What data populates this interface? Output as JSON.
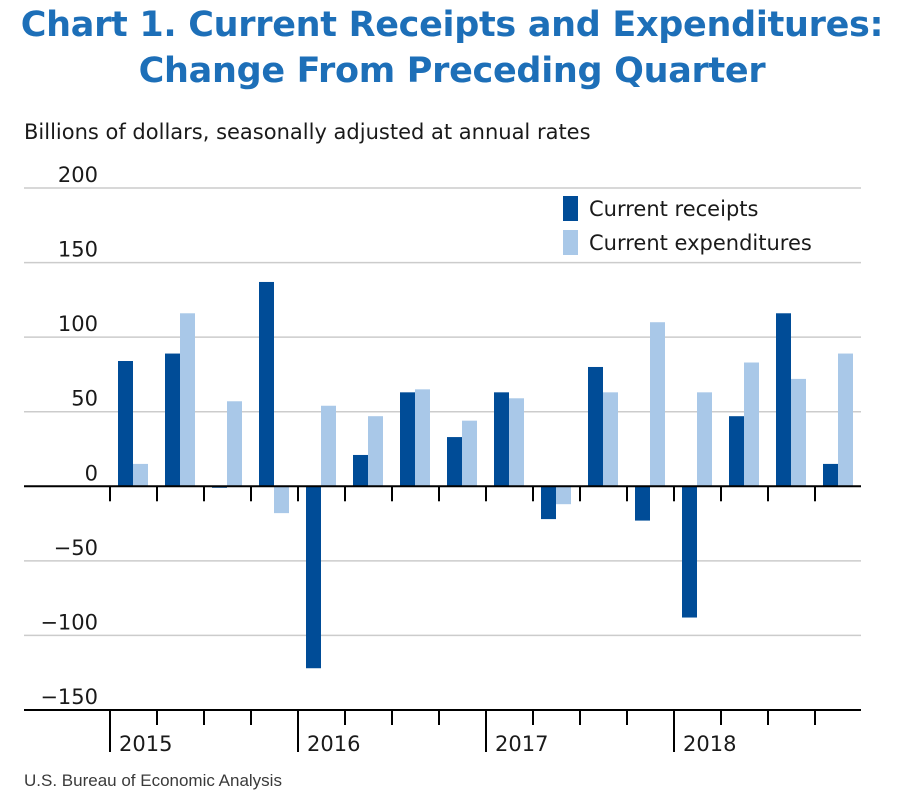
{
  "title_line1": "Chart 1. Current Receipts and Expenditures:",
  "title_line2": "Change From Preceding Quarter",
  "unit_label": "Billions of dollars, seasonally adjusted at annual rates",
  "source": "U.S. Bureau of Economic Analysis",
  "colors": {
    "title": "#1d6fb8",
    "receipts": "#004c97",
    "expenditures": "#a9c8e8",
    "grid": "#cccccc",
    "axis": "#000000"
  },
  "chart_data": {
    "type": "bar",
    "ylim": [
      -150,
      200
    ],
    "yticks": [
      200,
      150,
      100,
      50,
      0,
      -50,
      -100,
      -150
    ],
    "ytick_labels": [
      "200",
      "150",
      "100",
      "50",
      "0",
      "−50",
      "−100",
      "−150"
    ],
    "grid": true,
    "legend_position": "top-right",
    "year_labels": [
      "2015",
      "2016",
      "2017",
      "2018"
    ],
    "quarters_per_year": 4,
    "series": [
      {
        "name": "Current receipts",
        "values": [
          84,
          89,
          -1,
          137,
          -122,
          21,
          63,
          33,
          63,
          -22,
          80,
          -23,
          -88,
          47,
          116,
          15
        ]
      },
      {
        "name": "Current expenditures",
        "values": [
          15,
          116,
          57,
          -18,
          54,
          47,
          65,
          44,
          59,
          -12,
          63,
          110,
          63,
          83,
          72,
          89
        ]
      }
    ]
  }
}
